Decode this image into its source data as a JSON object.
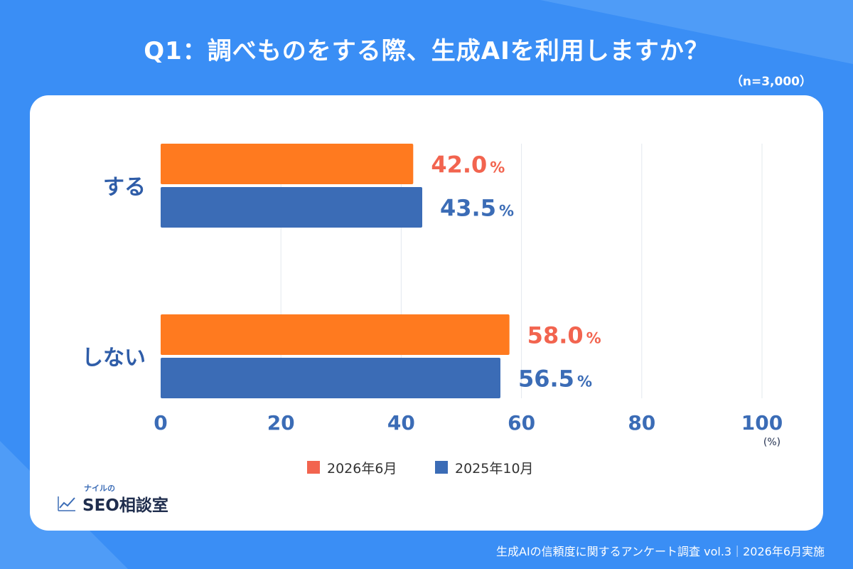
{
  "header": {
    "title": "Q1：調べものをする際、生成AIを利用しますか？",
    "sample": "（n=3,000）"
  },
  "colors": {
    "background": "#3a8ef5",
    "card": "#ffffff",
    "series_2026": "#ff7a1f",
    "series_2025": "#3b6cb6",
    "label_2026": "#f2644f",
    "label_2025": "#3b6cb6",
    "legend_2026": "#f2644f",
    "axis_text": "#3b6cb6",
    "category_text": "#2f5da8"
  },
  "chart_data": {
    "type": "bar",
    "orientation": "horizontal",
    "categories": [
      "する",
      "しない"
    ],
    "series": [
      {
        "name": "2026年6月",
        "values": [
          42.0,
          58.0
        ],
        "labels": [
          "42.0",
          "58.0"
        ]
      },
      {
        "name": "2025年10月",
        "values": [
          43.5,
          56.5
        ],
        "labels": [
          "43.5",
          "56.5"
        ]
      }
    ],
    "value_unit": "%",
    "xlim": [
      0,
      100
    ],
    "xticks": [
      "0",
      "20",
      "40",
      "60",
      "80",
      "100"
    ],
    "xunit": "(%)",
    "grid": true,
    "legend_position": "bottom"
  },
  "logo": {
    "small": "ナイルの",
    "main": "SEO相談室",
    "icon": "trend-chart-icon"
  },
  "footer": {
    "text": "生成AIの信頼度に関するアンケート調査 vol.3｜2026年6月実施"
  }
}
